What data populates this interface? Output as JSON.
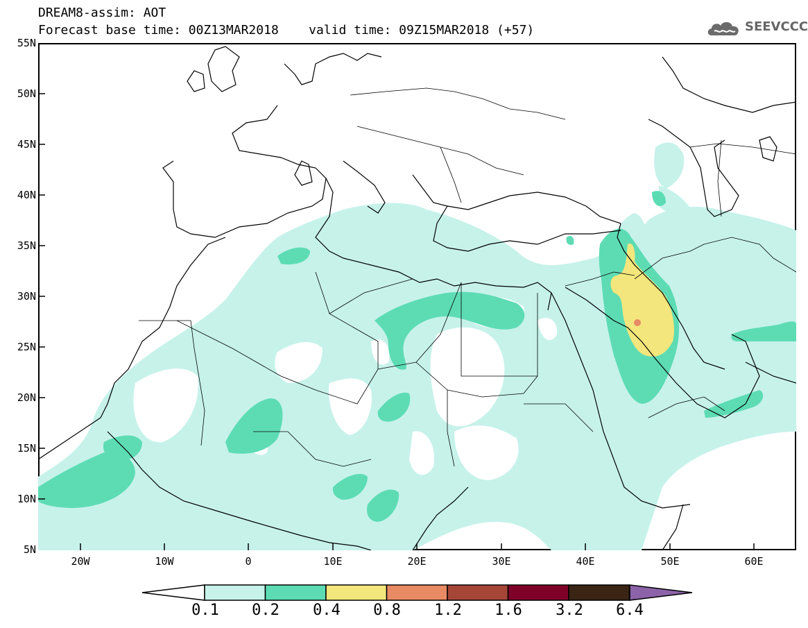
{
  "header": {
    "title_line1": "DREAM8-assim: AOT",
    "title_line2": "Forecast base time: 00Z13MAR2018    valid time: 09Z15MAR2018 (+57)"
  },
  "logo": {
    "text": "SEEVCCC",
    "icon": "cloud-icon"
  },
  "map": {
    "lat_labels": [
      "55N",
      "50N",
      "45N",
      "40N",
      "35N",
      "30N",
      "25N",
      "20N",
      "15N",
      "10N",
      "5N"
    ],
    "lon_labels": [
      "20W",
      "10W",
      "0",
      "10E",
      "20E",
      "30E",
      "40E",
      "50E",
      "60E"
    ],
    "lon_range": [
      -25,
      65
    ],
    "lat_range": [
      5,
      55
    ],
    "field": "AOT"
  },
  "colorbar": {
    "labels": [
      "0.1",
      "0.2",
      "0.4",
      "0.8",
      "1.2",
      "1.6",
      "3.2",
      "6.4"
    ],
    "colors": [
      "#c6f2ea",
      "#5ddcb4",
      "#f3e67c",
      "#e88a63",
      "#a64637",
      "#7f0029",
      "#3a2414",
      "#8c63a8"
    ]
  }
}
